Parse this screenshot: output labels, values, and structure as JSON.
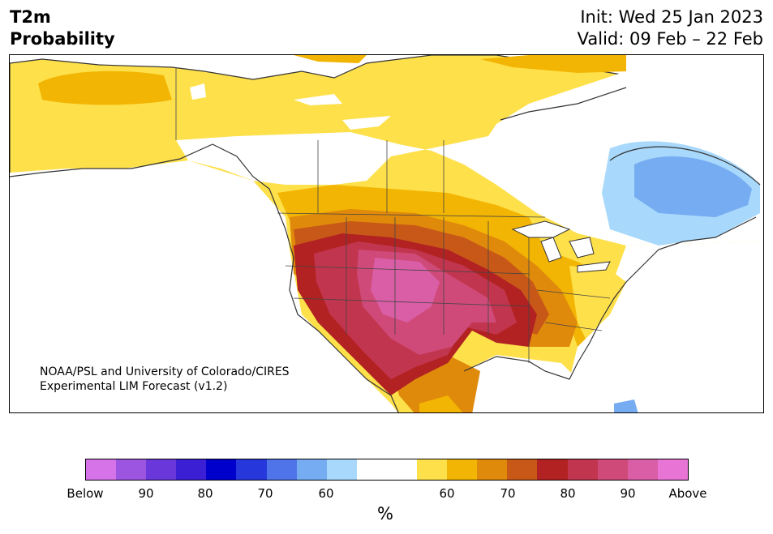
{
  "title": {
    "line1": "T2m",
    "line2": "Probability"
  },
  "dates": {
    "init": "Init: Wed 25 Jan 2023",
    "valid": "Valid: 09 Feb – 22 Feb"
  },
  "credit": {
    "line1": "NOAA/PSL and University of Colorado/CIRES",
    "line2": "Experimental LIM Forecast (v1.2)"
  },
  "colorbar": {
    "unit": "%",
    "colors": [
      "#d673e9",
      "#9b55e0",
      "#6a38da",
      "#3b1fd5",
      "#0000cd",
      "#2638dc",
      "#4f74ea",
      "#75acf2",
      "#a8d8fb",
      "#ffffff",
      "#ffffff",
      "#fee04a",
      "#f3b503",
      "#e08a0b",
      "#c85818",
      "#b22222",
      "#c2354f",
      "#cf4a78",
      "#da5ea6",
      "#e875d5"
    ],
    "tick_labels": [
      "Below",
      "90",
      "80",
      "70",
      "60",
      "60",
      "70",
      "80",
      "90",
      "Above"
    ]
  },
  "map": {
    "colors": {
      "yellow": "#fee04a",
      "gold": "#f3b503",
      "orange": "#e08a0b",
      "dark_orange": "#c85818",
      "red": "#b22222",
      "crimson": "#c2354f",
      "rose": "#cf4a78",
      "pink": "#da5ea6",
      "light_blue": "#a8d8fb",
      "blue": "#75acf2",
      "outline": "#333333"
    }
  }
}
